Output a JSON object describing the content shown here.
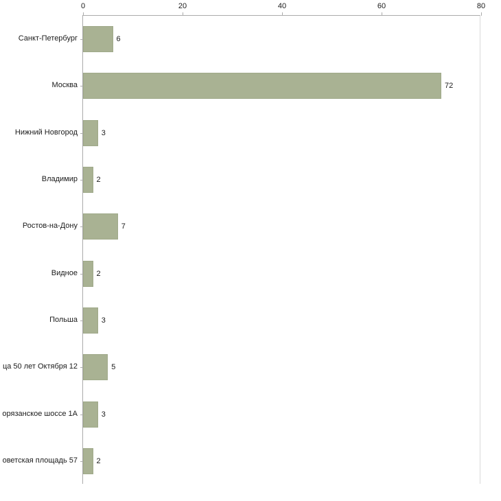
{
  "chart_data": {
    "type": "bar",
    "orientation": "horizontal",
    "title": "",
    "xlabel": "",
    "ylabel": "",
    "xlim": [
      0,
      80
    ],
    "x_ticks": [
      0,
      20,
      40,
      60,
      80
    ],
    "grid": false,
    "legend": "none",
    "bar_color": "#a9b293",
    "categories": [
      "Санкт-Петербург",
      "Москва",
      "Нижний Новгород",
      "Владимир",
      "Ростов-на-Дону",
      "Видное",
      "Польша",
      "ца 50 лет Октября 12",
      "орязанское шоссе 1А",
      "оветская площадь 57"
    ],
    "values": [
      6,
      72,
      3,
      2,
      7,
      2,
      3,
      5,
      3,
      2
    ]
  }
}
